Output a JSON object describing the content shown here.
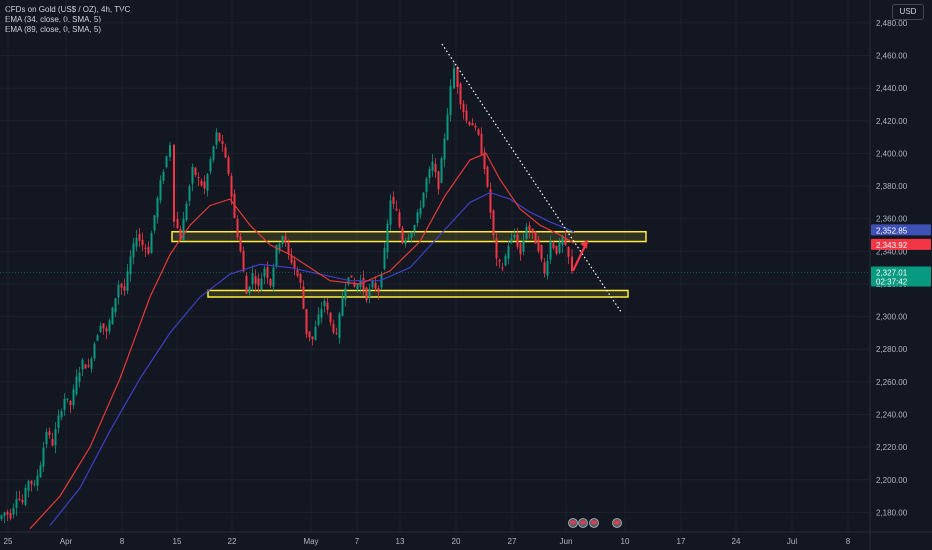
{
  "header": {
    "title": "CFDs on Gold (US$ / OZ), 4h, TVC",
    "indicators": [
      "EMA (34, close, 0, SMA, 5)",
      "EMA (89, close, 0, SMA, 5)"
    ],
    "currency": "USD"
  },
  "chart_data": {
    "type": "candlestick",
    "y_ticks": [
      2180,
      2200,
      2220,
      2240,
      2260,
      2280,
      2300,
      2320,
      2340,
      2360,
      2380,
      2400,
      2420,
      2440,
      2460,
      2480
    ],
    "y_tick_labels": [
      "2,180.00",
      "2,200.00",
      "2,220.00",
      "2,240.00",
      "2,260.00",
      "2,280.00",
      "2,300.00",
      "2,320.00",
      "2,340.00",
      "2,360.00",
      "2,380.00",
      "2,400.00",
      "2,420.00",
      "2,440.00",
      "2,460.00",
      "2,480.00"
    ],
    "x_labels": [
      "25",
      "Apr",
      "8",
      "15",
      "22",
      "May",
      "7",
      "13",
      "20",
      "27",
      "Jun",
      "10",
      "17",
      "24",
      "Jul",
      "8"
    ],
    "ylim": [
      2168,
      2494
    ],
    "price_path": [
      [
        0,
        2176
      ],
      [
        6,
        2180
      ],
      [
        12,
        2178
      ],
      [
        18,
        2190
      ],
      [
        24,
        2186
      ],
      [
        30,
        2200
      ],
      [
        36,
        2196
      ],
      [
        42,
        2210
      ],
      [
        48,
        2230
      ],
      [
        54,
        2222
      ],
      [
        60,
        2238
      ],
      [
        66,
        2250
      ],
      [
        72,
        2246
      ],
      [
        78,
        2262
      ],
      [
        84,
        2272
      ],
      [
        90,
        2268
      ],
      [
        96,
        2284
      ],
      [
        102,
        2296
      ],
      [
        108,
        2290
      ],
      [
        114,
        2304
      ],
      [
        120,
        2320
      ],
      [
        126,
        2316
      ],
      [
        132,
        2336
      ],
      [
        138,
        2350
      ],
      [
        144,
        2344
      ],
      [
        150,
        2340
      ],
      [
        156,
        2362
      ],
      [
        162,
        2382
      ],
      [
        168,
        2398
      ],
      [
        172,
        2406
      ],
      [
        176,
        2360
      ],
      [
        182,
        2348
      ],
      [
        188,
        2370
      ],
      [
        194,
        2390
      ],
      [
        200,
        2384
      ],
      [
        206,
        2378
      ],
      [
        212,
        2396
      ],
      [
        218,
        2412
      ],
      [
        224,
        2404
      ],
      [
        230,
        2388
      ],
      [
        236,
        2360
      ],
      [
        242,
        2340
      ],
      [
        248,
        2314
      ],
      [
        254,
        2326
      ],
      [
        260,
        2318
      ],
      [
        266,
        2330
      ],
      [
        272,
        2320
      ],
      [
        278,
        2342
      ],
      [
        284,
        2350
      ],
      [
        290,
        2338
      ],
      [
        296,
        2330
      ],
      [
        302,
        2320
      ],
      [
        308,
        2290
      ],
      [
        314,
        2286
      ],
      [
        320,
        2300
      ],
      [
        326,
        2310
      ],
      [
        332,
        2296
      ],
      [
        338,
        2288
      ],
      [
        344,
        2312
      ],
      [
        350,
        2326
      ],
      [
        356,
        2318
      ],
      [
        362,
        2322
      ],
      [
        368,
        2312
      ],
      [
        374,
        2320
      ],
      [
        380,
        2316
      ],
      [
        386,
        2340
      ],
      [
        392,
        2372
      ],
      [
        398,
        2364
      ],
      [
        404,
        2346
      ],
      [
        410,
        2350
      ],
      [
        416,
        2356
      ],
      [
        422,
        2368
      ],
      [
        428,
        2384
      ],
      [
        434,
        2394
      ],
      [
        440,
        2380
      ],
      [
        446,
        2410
      ],
      [
        452,
        2440
      ],
      [
        456,
        2452
      ],
      [
        462,
        2432
      ],
      [
        468,
        2420
      ],
      [
        474,
        2418
      ],
      [
        480,
        2410
      ],
      [
        486,
        2392
      ],
      [
        492,
        2364
      ],
      [
        498,
        2334
      ],
      [
        504,
        2330
      ],
      [
        510,
        2344
      ],
      [
        516,
        2350
      ],
      [
        522,
        2338
      ],
      [
        528,
        2356
      ],
      [
        534,
        2350
      ],
      [
        540,
        2342
      ],
      [
        546,
        2326
      ],
      [
        552,
        2346
      ],
      [
        558,
        2340
      ],
      [
        564,
        2348
      ],
      [
        570,
        2336
      ],
      [
        574,
        2327
      ]
    ],
    "ema34_path": [
      [
        30,
        2170
      ],
      [
        60,
        2190
      ],
      [
        90,
        2220
      ],
      [
        120,
        2262
      ],
      [
        150,
        2312
      ],
      [
        170,
        2338
      ],
      [
        190,
        2356
      ],
      [
        210,
        2368
      ],
      [
        230,
        2372
      ],
      [
        250,
        2356
      ],
      [
        270,
        2344
      ],
      [
        290,
        2338
      ],
      [
        310,
        2330
      ],
      [
        330,
        2322
      ],
      [
        360,
        2320
      ],
      [
        390,
        2328
      ],
      [
        420,
        2346
      ],
      [
        445,
        2374
      ],
      [
        470,
        2396
      ],
      [
        486,
        2400
      ],
      [
        500,
        2384
      ],
      [
        520,
        2366
      ],
      [
        540,
        2356
      ],
      [
        560,
        2350
      ],
      [
        574,
        2345
      ]
    ],
    "ema89_path": [
      [
        50,
        2172
      ],
      [
        80,
        2195
      ],
      [
        110,
        2230
      ],
      [
        140,
        2262
      ],
      [
        170,
        2290
      ],
      [
        200,
        2312
      ],
      [
        230,
        2326
      ],
      [
        260,
        2332
      ],
      [
        290,
        2330
      ],
      [
        320,
        2326
      ],
      [
        350,
        2322
      ],
      [
        380,
        2322
      ],
      [
        410,
        2330
      ],
      [
        440,
        2350
      ],
      [
        470,
        2370
      ],
      [
        490,
        2376
      ],
      [
        510,
        2372
      ],
      [
        530,
        2364
      ],
      [
        550,
        2358
      ],
      [
        574,
        2352
      ]
    ],
    "resistance_zone": [
      2346,
      2352
    ],
    "support_zone": [
      2312,
      2316
    ],
    "trendline": [
      [
        442,
        2467
      ],
      [
        622,
        2302
      ]
    ],
    "arrow": [
      [
        573,
        2328
      ],
      [
        588,
        2347
      ]
    ],
    "price_labels": [
      {
        "value": 2352.85,
        "text": "2,352.85",
        "color": "#3f51b5"
      },
      {
        "value": 2343.92,
        "text": "2,343.92",
        "color": "#f23645"
      },
      {
        "value": 2327.01,
        "text": "2,327.01",
        "color": "#089981",
        "sub": "02:37:42"
      }
    ]
  }
}
